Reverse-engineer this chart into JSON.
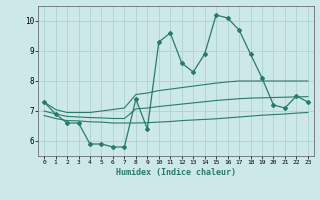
{
  "xlabel": "Humidex (Indice chaleur)",
  "x": [
    0,
    1,
    2,
    3,
    4,
    5,
    6,
    7,
    8,
    9,
    10,
    11,
    12,
    13,
    14,
    15,
    16,
    17,
    18,
    19,
    20,
    21,
    22,
    23
  ],
  "main_line": [
    7.3,
    6.9,
    6.6,
    6.6,
    5.9,
    5.9,
    5.8,
    5.8,
    7.4,
    6.4,
    9.3,
    9.6,
    8.6,
    8.3,
    8.9,
    10.2,
    10.1,
    9.7,
    8.9,
    8.1,
    7.2,
    7.1,
    7.5,
    7.3
  ],
  "upper_line": [
    7.3,
    7.05,
    6.95,
    6.95,
    6.95,
    7.0,
    7.05,
    7.1,
    7.55,
    7.6,
    7.68,
    7.73,
    7.78,
    7.83,
    7.88,
    7.93,
    7.97,
    8.0,
    8.0,
    8.0,
    8.0,
    8.0,
    8.0,
    8.0
  ],
  "lower_line": [
    6.85,
    6.75,
    6.68,
    6.67,
    6.64,
    6.63,
    6.6,
    6.6,
    6.6,
    6.61,
    6.63,
    6.65,
    6.68,
    6.7,
    6.72,
    6.74,
    6.77,
    6.8,
    6.83,
    6.86,
    6.88,
    6.9,
    6.93,
    6.95
  ],
  "mid_line": [
    7.0,
    6.9,
    6.82,
    6.8,
    6.78,
    6.77,
    6.75,
    6.75,
    7.07,
    7.1,
    7.15,
    7.19,
    7.23,
    7.27,
    7.31,
    7.35,
    7.38,
    7.41,
    7.43,
    7.44,
    7.45,
    7.46,
    7.47,
    7.48
  ],
  "line_color": "#2a7a6a",
  "bg_color": "#cce8e8",
  "grid_color": "#aacece",
  "ylim": [
    5.5,
    10.5
  ],
  "xlim": [
    -0.5,
    23.5
  ],
  "yticks": [
    6,
    7,
    8,
    9,
    10
  ],
  "xticks": [
    0,
    1,
    2,
    3,
    4,
    5,
    6,
    7,
    8,
    9,
    10,
    11,
    12,
    13,
    14,
    15,
    16,
    17,
    18,
    19,
    20,
    21,
    22,
    23
  ]
}
